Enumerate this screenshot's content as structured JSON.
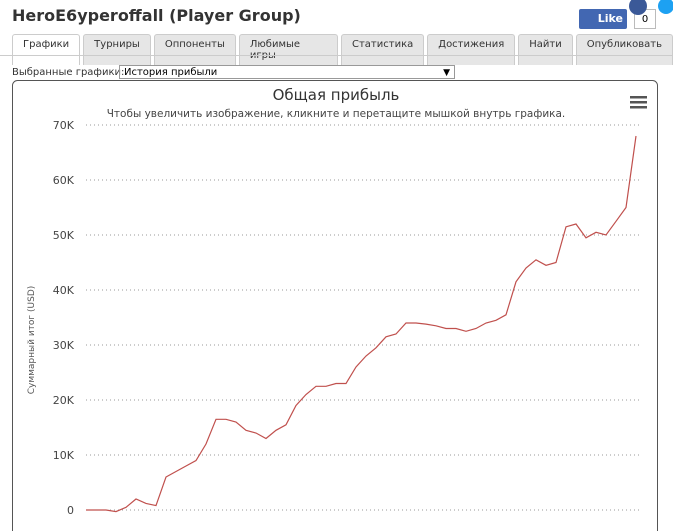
{
  "header": {
    "title": "HeroE6yperoffall (Player Group)",
    "like": "Like",
    "like_count": "0"
  },
  "tabs": [
    "Графики",
    "Турниры",
    "Оппоненты",
    "Любимые игры",
    "Статистика",
    "Достижения",
    "Найти",
    "Опубликовать"
  ],
  "selector": {
    "label": "Выбранные графики:",
    "value": "История прибыли"
  },
  "chart_data": {
    "type": "line",
    "title": "Общая прибыль",
    "subtitle": "Чтобы увеличить изображение, кликните и перетащите мышкой внутрь графика.",
    "y_label": "Суммарный итог (USD)",
    "color": "#c0504d",
    "grid": true,
    "ylim": [
      0,
      70000
    ],
    "yticks": [
      0,
      {
        "value": 10000,
        "label": "10K"
      },
      {
        "value": 20000,
        "label": "20K"
      },
      {
        "value": 30000,
        "label": "30K"
      },
      {
        "value": 40000,
        "label": "40K"
      },
      {
        "value": 50000,
        "label": "50K"
      },
      {
        "value": 60000,
        "label": "60K"
      },
      {
        "value": 70000,
        "label": "70K"
      }
    ],
    "values": [
      0,
      0,
      0,
      -300,
      500,
      2000,
      1200,
      800,
      6000,
      7000,
      8000,
      9000,
      12000,
      16500,
      16500,
      16000,
      14500,
      14000,
      13000,
      14500,
      15500,
      19000,
      21000,
      22500,
      22500,
      23000,
      23000,
      26000,
      28000,
      29500,
      31500,
      32000,
      34000,
      34000,
      33800,
      33500,
      33000,
      33000,
      32500,
      33000,
      34000,
      34500,
      35500,
      41500,
      44000,
      45500,
      44500,
      45000,
      51500,
      52000,
      49500,
      50500,
      50000,
      52500,
      55000,
      68000
    ]
  }
}
